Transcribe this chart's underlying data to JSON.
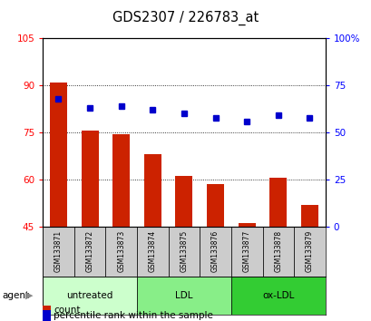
{
  "title": "GDS2307 / 226783_at",
  "samples": [
    "GSM133871",
    "GSM133872",
    "GSM133873",
    "GSM133874",
    "GSM133875",
    "GSM133876",
    "GSM133877",
    "GSM133878",
    "GSM133879"
  ],
  "bar_values": [
    91,
    75.5,
    74.5,
    68,
    61,
    58.5,
    46,
    60.5,
    52
  ],
  "dot_pct": [
    68,
    63,
    64,
    62,
    60,
    58,
    56,
    59,
    58
  ],
  "ylim_left": [
    45,
    105
  ],
  "ylim_right": [
    0,
    100
  ],
  "yticks_left": [
    45,
    60,
    75,
    90,
    105
  ],
  "yticks_right": [
    0,
    25,
    50,
    75,
    100
  ],
  "ytick_labels_right": [
    "0",
    "25",
    "50",
    "75",
    "100%"
  ],
  "bar_color": "#cc2200",
  "dot_color": "#0000cc",
  "agent_groups": [
    {
      "label": "untreated",
      "start": 0,
      "end": 3,
      "color": "#ccffcc"
    },
    {
      "label": "LDL",
      "start": 3,
      "end": 6,
      "color": "#88ee88"
    },
    {
      "label": "ox-LDL",
      "start": 6,
      "end": 9,
      "color": "#33cc33"
    }
  ],
  "legend_count_label": "count",
  "legend_pct_label": "percentile rank within the sample",
  "background_plot": "#ffffff",
  "background_sample": "#cccccc",
  "bar_bottom": 45
}
